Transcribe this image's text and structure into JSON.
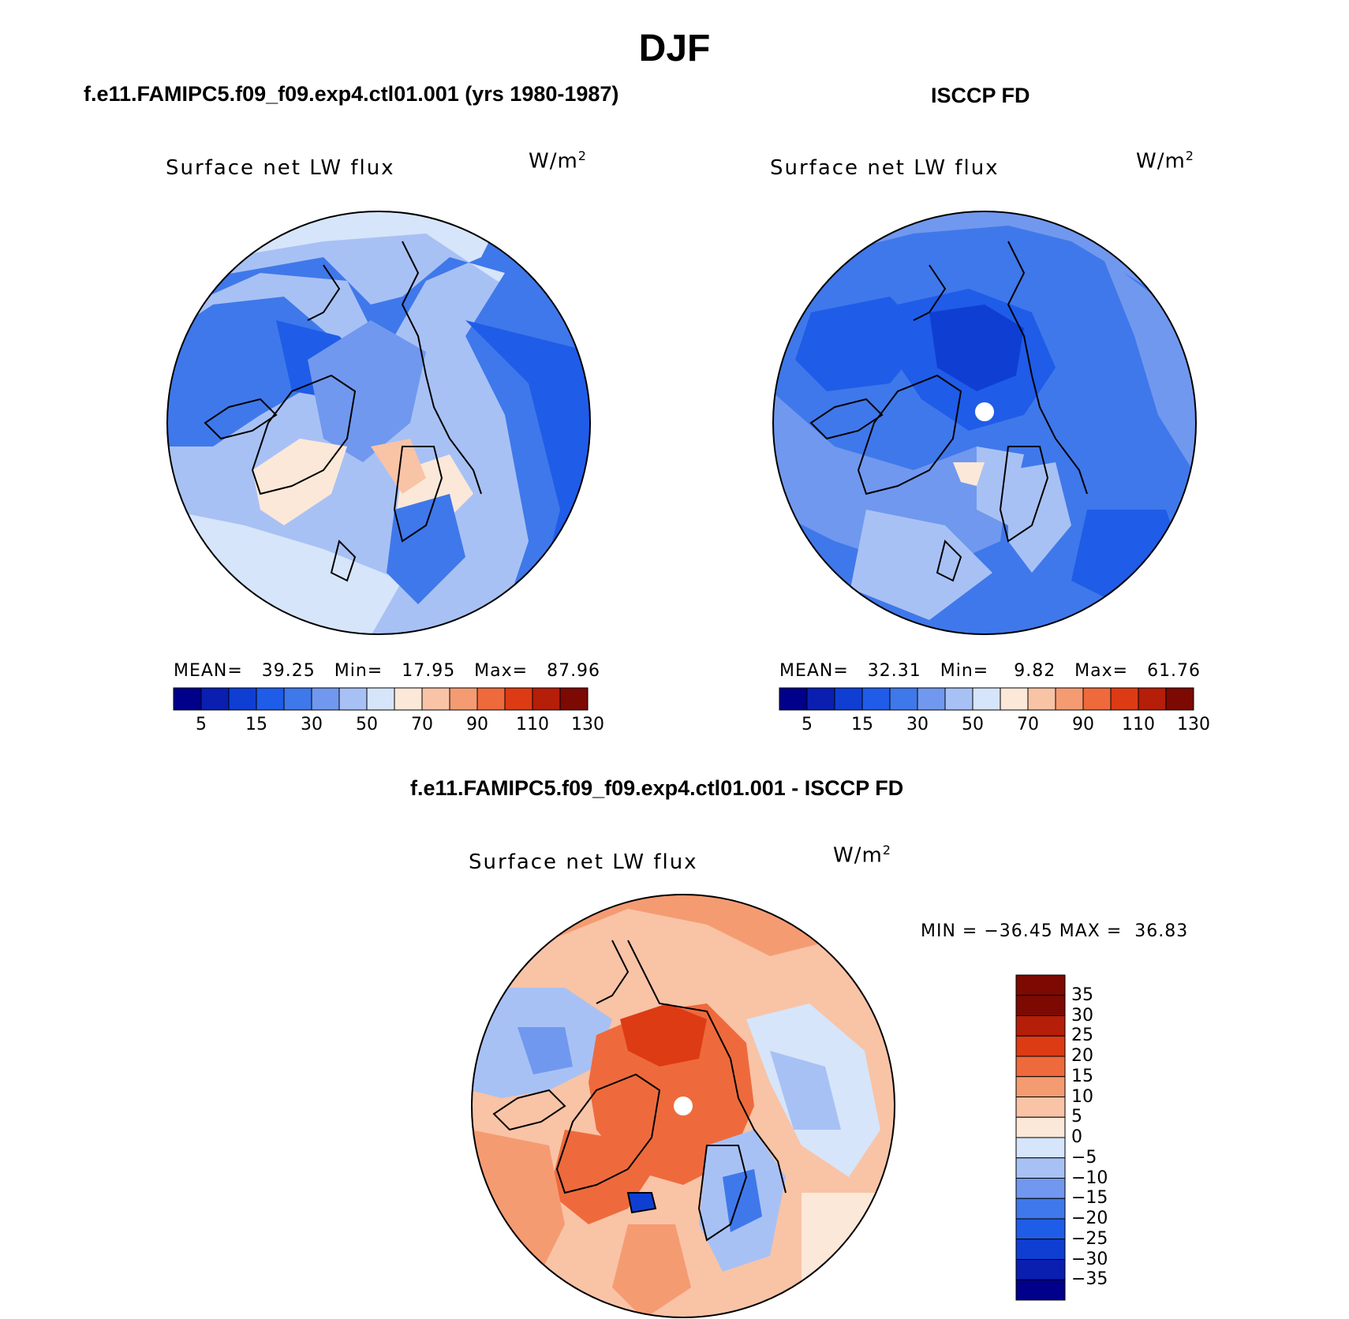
{
  "title": "DJF",
  "panels": [
    {
      "subtitle": "f.e11.FAMIPC5.f09_f09.exp4.ctl01.001 (yrs 1980-1987)",
      "variable": "Surface net LW flux",
      "units": "W/m",
      "units_sup": "2",
      "stats": "MEAN=   39.25   Min=   17.95   Max=   87.96"
    },
    {
      "subtitle": "ISCCP FD",
      "variable": "Surface net LW flux",
      "units": "W/m",
      "units_sup": "2",
      "stats": "MEAN=   32.31   Min=    9.82   Max=   61.76"
    },
    {
      "subtitle": "f.e11.FAMIPC5.f09_f09.exp4.ctl01.001 - ISCCP FD",
      "variable": "Surface net LW flux",
      "units": "W/m",
      "units_sup": "2",
      "stats": "MIN = −36.45 MAX =  36.83"
    }
  ],
  "colorbar_abs": {
    "colors": [
      "#00008b",
      "#0a1fb0",
      "#0f3fd2",
      "#1f5ce8",
      "#3f78ea",
      "#7098ee",
      "#a8c1f4",
      "#d6e5fa",
      "#fbe8d8",
      "#f9c3a6",
      "#f59b72",
      "#ee6a3c",
      "#dd3b14",
      "#b51e08",
      "#7c0a02"
    ],
    "tick_labels": [
      "5",
      "15",
      "30",
      "50",
      "70",
      "90",
      "110",
      "130"
    ]
  },
  "colorbar_diff": {
    "colors": [
      "#00008b",
      "#0a1fb0",
      "#0f3fd2",
      "#1f5ce8",
      "#3f78ea",
      "#7098ee",
      "#a8c1f4",
      "#d6e5fa",
      "#fbe8d8",
      "#f9c3a6",
      "#f59b72",
      "#ee6a3c",
      "#dd3b14",
      "#b51e08",
      "#7c0a02"
    ],
    "tick_labels": [
      "−35",
      "−30",
      "−25",
      "−20",
      "−15",
      "−10",
      "−5",
      "0",
      "5",
      "10",
      "15",
      "20",
      "25",
      "30",
      "35"
    ]
  }
}
